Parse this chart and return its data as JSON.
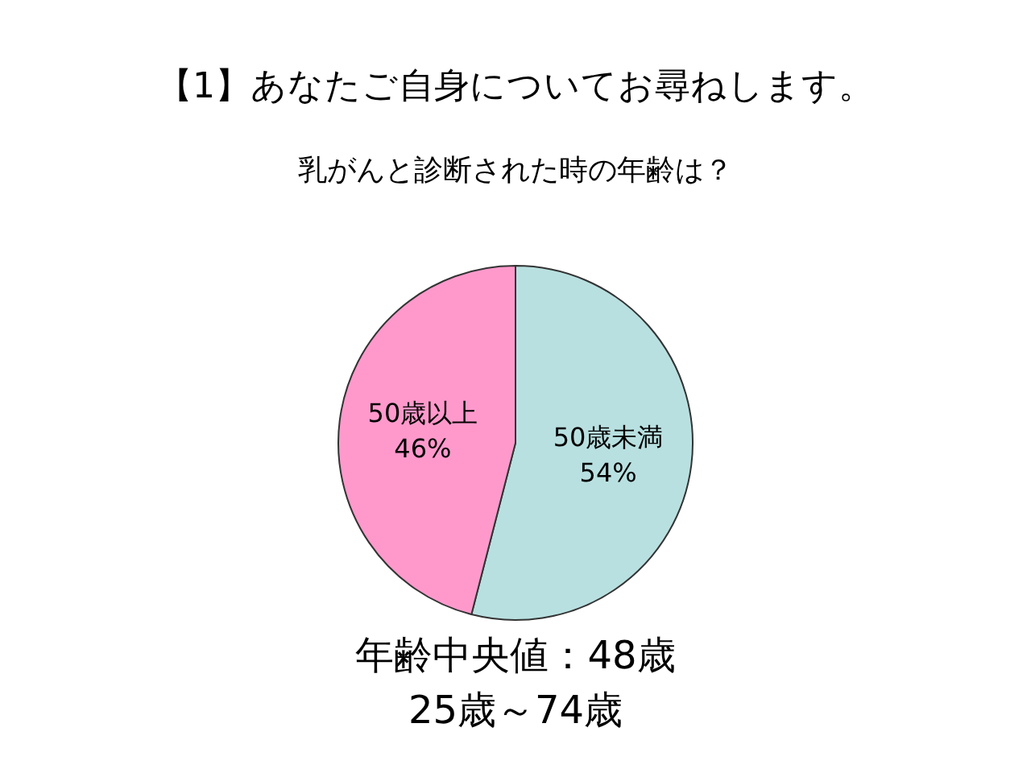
{
  "chart_data": {
    "type": "pie",
    "title": "【1】あなたご自身についてお尋ねします。",
    "subtitle": "乳がんと診断された時の年齢は？",
    "categories": [
      "50歳未満",
      "50歳以上"
    ],
    "values": [
      54,
      46
    ],
    "colors": [
      "#b9e0e0",
      "#ff99cc"
    ],
    "value_labels": [
      "54%",
      "46%"
    ],
    "annotations": [
      "年齢中央値：48歳",
      "25歳～74歳"
    ]
  }
}
